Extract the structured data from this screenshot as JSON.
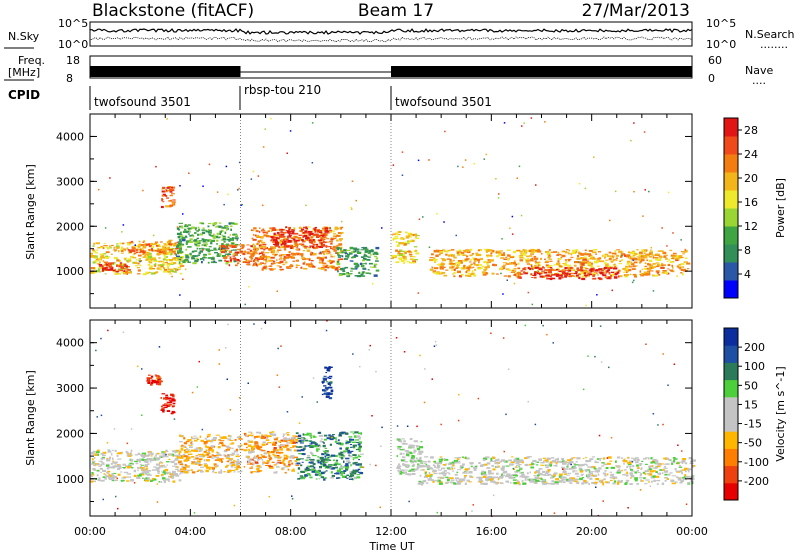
{
  "header": {
    "station": "Blackstone (fitACF)",
    "beam": "Beam 17",
    "date": "27/Mar/2013"
  },
  "side_labels": {
    "nsky": "N.Sky",
    "nsearch": "N.Search",
    "nsearch_dots": "........",
    "freq_line1": "Freq.",
    "freq_line2": "[MHz]",
    "nave": "Nave",
    "nave_dots": "....",
    "cpid": "CPID"
  },
  "noise_axis": {
    "top": "10^5",
    "bottom": "10^0",
    "right_top": "10^5",
    "right_bottom": "10^0"
  },
  "freq_axis": {
    "left_top": "18",
    "left_bottom": "8",
    "right_top": "60",
    "right_bottom": "0"
  },
  "cpid_segments": [
    {
      "label": "twofsound 3501",
      "start": 0,
      "end": 6
    },
    {
      "label": "rbsp-tou 210",
      "start": 6,
      "end": 12
    },
    {
      "label": "twofsound 3501",
      "start": 12,
      "end": 24
    }
  ],
  "time_axis": {
    "title": "Time UT",
    "ticks": [
      "00:00",
      "04:00",
      "08:00",
      "12:00",
      "16:00",
      "20:00",
      "00:00"
    ]
  },
  "colors": {
    "power": [
      "#0000ff",
      "#2b57a7",
      "#338f58",
      "#3fa442",
      "#99d633",
      "#eeea2b",
      "#f2b51a",
      "#f47d12",
      "#f04a1a",
      "#e21515"
    ],
    "velocity": [
      "#e60000",
      "#ef4010",
      "#ff7e00",
      "#ffb600",
      "#c4c4c4",
      "#c4c4c4",
      "#4ccf3a",
      "#2b7a5a",
      "#1e4fa2",
      "#0b2d9e"
    ]
  },
  "chart_data": [
    {
      "type": "heatmap",
      "title": "Power",
      "ylabel": "Slant Range [km]",
      "xlabel": "Time UT",
      "x_range_hours": [
        0,
        24
      ],
      "ylim": [
        180,
        4500
      ],
      "y_ticks": [
        "1000",
        "2000",
        "3000",
        "4000"
      ],
      "colorbar": {
        "label": "Power [dB]",
        "ticks": [
          "4",
          "8",
          "12",
          "16",
          "20",
          "24",
          "28"
        ],
        "range": [
          0,
          30
        ]
      },
      "echo_regions": [
        {
          "t0": 0.0,
          "t1": 3.6,
          "r0": 950,
          "r1": 1650,
          "value": 18
        },
        {
          "t0": 0.2,
          "t1": 1.5,
          "r0": 1000,
          "r1": 1200,
          "value": 27
        },
        {
          "t0": 1.5,
          "t1": 3.5,
          "r0": 1400,
          "r1": 1700,
          "value": 22
        },
        {
          "t0": 2.8,
          "t1": 3.3,
          "r0": 2450,
          "r1": 2900,
          "value": 24
        },
        {
          "t0": 3.4,
          "t1": 5.8,
          "r0": 1200,
          "r1": 2100,
          "value": 10
        },
        {
          "t0": 5.2,
          "t1": 6.9,
          "r0": 1150,
          "r1": 1600,
          "value": 24
        },
        {
          "t0": 6.4,
          "t1": 10.0,
          "r0": 1050,
          "r1": 2000,
          "value": 22
        },
        {
          "t0": 7.2,
          "t1": 9.4,
          "r0": 1550,
          "r1": 2000,
          "value": 28
        },
        {
          "t0": 9.8,
          "t1": 11.4,
          "r0": 900,
          "r1": 1550,
          "value": 9
        },
        {
          "t0": 12.0,
          "t1": 13.0,
          "r0": 1200,
          "r1": 1900,
          "value": 18
        },
        {
          "t0": 13.5,
          "t1": 23.8,
          "r0": 900,
          "r1": 1500,
          "value": 20
        },
        {
          "t0": 17.0,
          "t1": 21.0,
          "r0": 850,
          "r1": 1100,
          "value": 28
        }
      ]
    },
    {
      "type": "heatmap",
      "title": "Velocity",
      "ylabel": "Slant Range [km]",
      "xlabel": "Time UT",
      "x_range_hours": [
        0,
        24
      ],
      "ylim": [
        180,
        4500
      ],
      "y_ticks": [
        "1000",
        "2000",
        "3000",
        "4000"
      ],
      "colorbar": {
        "label": "Velocity [m s^-1]",
        "ticks": [
          "200",
          "100",
          "50",
          "15",
          "-15",
          "-50",
          "-100",
          "-200"
        ],
        "range": [
          -250,
          250
        ]
      },
      "echo_regions": [
        {
          "t0": 0.0,
          "t1": 3.6,
          "r0": 950,
          "r1": 1650,
          "value": 0
        },
        {
          "t0": 2.8,
          "t1": 3.3,
          "r0": 2450,
          "r1": 2900,
          "value": -220
        },
        {
          "t0": 2.2,
          "t1": 2.8,
          "r0": 3100,
          "r1": 3300,
          "value": -200
        },
        {
          "t0": 3.5,
          "t1": 6.0,
          "r0": 1150,
          "r1": 2000,
          "value": -70
        },
        {
          "t0": 6.1,
          "t1": 8.2,
          "r0": 1150,
          "r1": 2050,
          "value": -90
        },
        {
          "t0": 8.2,
          "t1": 10.8,
          "r0": 1000,
          "r1": 2050,
          "value": 110
        },
        {
          "t0": 9.2,
          "t1": 9.6,
          "r0": 2800,
          "r1": 3500,
          "value": 200
        },
        {
          "t0": 12.2,
          "t1": 13.2,
          "r0": 1100,
          "r1": 1900,
          "value": 30
        },
        {
          "t0": 13.0,
          "t1": 24.0,
          "r0": 900,
          "r1": 1500,
          "value": 0
        }
      ]
    }
  ]
}
